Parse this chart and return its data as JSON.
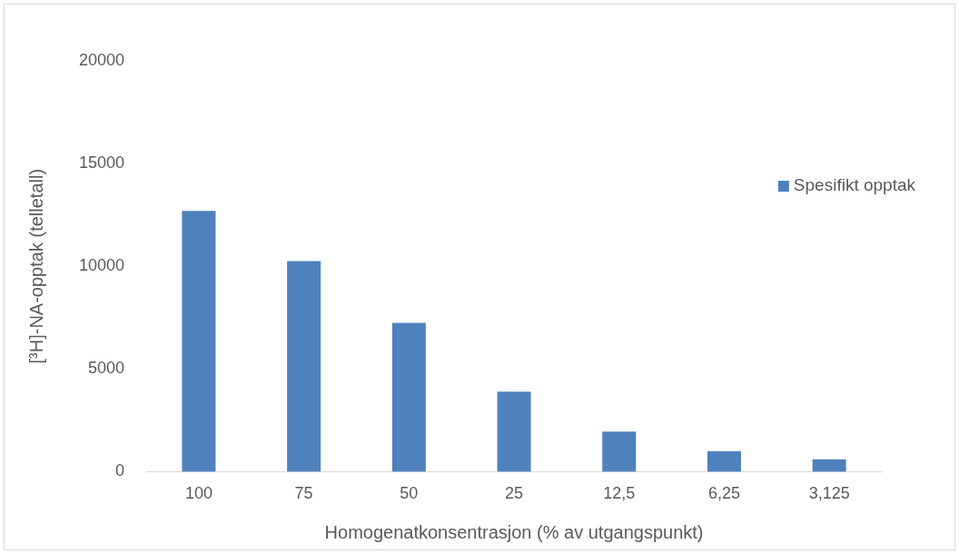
{
  "chart_data": {
    "type": "bar",
    "xlabel": "Homogenatkonsentrasjon (% av utgangspunkt)",
    "ylabel": "[³H]-NA-opptak (telletall)",
    "categories": [
      "100",
      "75",
      "50",
      "25",
      "12,5",
      "6,25",
      "3,125"
    ],
    "series": [
      {
        "name": "Spesifikt opptak",
        "color": "#4f81bd",
        "values": [
          12700,
          10250,
          7250,
          3900,
          1950,
          1000,
          600
        ]
      }
    ],
    "ylim": [
      0,
      20000
    ],
    "yticks": [
      0,
      5000,
      10000,
      15000,
      20000
    ],
    "grid": false,
    "legend": "right"
  }
}
